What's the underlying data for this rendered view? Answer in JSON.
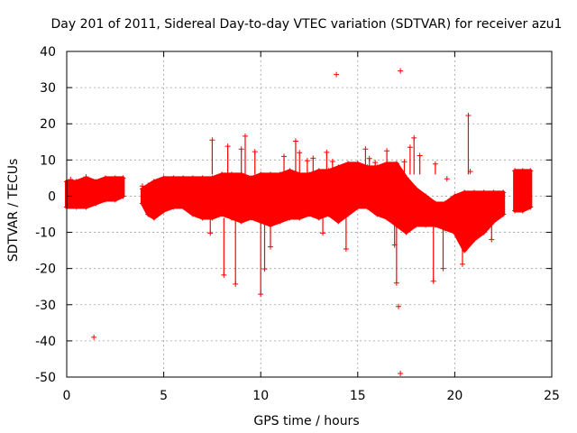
{
  "chart_data": {
    "type": "scatter",
    "title": "Day 201 of 2011, Sidereal Day-to-day VTEC variation (SDTVAR) for receiver azu1",
    "xlabel": "GPS time / hours",
    "ylabel": "SDTVAR / TECUs",
    "xlim": [
      0,
      25
    ],
    "ylim": [
      -50,
      40
    ],
    "xticks": [
      "0",
      "5",
      "10",
      "15",
      "20",
      "25"
    ],
    "yticks": [
      "40",
      "30",
      "20",
      "10",
      "0",
      "-10",
      "-20",
      "-30",
      "-40",
      "-50"
    ],
    "grid": true,
    "marker": "+",
    "color": "#ff0000",
    "series": [
      {
        "name": "SDTVAR",
        "band": [
          [
            0.0,
            -3,
            4
          ],
          [
            0.5,
            -3,
            4
          ],
          [
            1.0,
            -3,
            5
          ],
          [
            1.5,
            -2,
            4
          ],
          [
            2.0,
            -1,
            5
          ],
          [
            2.5,
            -1,
            5
          ],
          [
            2.9,
            0,
            5
          ],
          [
            3.9,
            -2,
            2
          ],
          [
            4.2,
            -5,
            3
          ],
          [
            4.5,
            -6,
            4
          ],
          [
            5.0,
            -4,
            5
          ],
          [
            5.5,
            -3,
            5
          ],
          [
            6.0,
            -3,
            5
          ],
          [
            6.5,
            -5,
            5
          ],
          [
            7.0,
            -6,
            5
          ],
          [
            7.5,
            -6,
            5
          ],
          [
            8.0,
            -5,
            6
          ],
          [
            8.5,
            -6,
            6
          ],
          [
            9.0,
            -7,
            6
          ],
          [
            9.5,
            -6,
            5
          ],
          [
            10.0,
            -7,
            6
          ],
          [
            10.5,
            -8,
            6
          ],
          [
            11.0,
            -7,
            6
          ],
          [
            11.5,
            -6,
            7
          ],
          [
            12.0,
            -6,
            6
          ],
          [
            12.5,
            -5,
            6
          ],
          [
            13.0,
            -6,
            7
          ],
          [
            13.5,
            -5,
            7
          ],
          [
            14.0,
            -7,
            8
          ],
          [
            14.5,
            -5,
            9
          ],
          [
            15.0,
            -3,
            9
          ],
          [
            15.5,
            -3,
            8
          ],
          [
            16.0,
            -5,
            8
          ],
          [
            16.5,
            -6,
            9
          ],
          [
            17.0,
            -8,
            9
          ],
          [
            17.5,
            -10,
            5
          ],
          [
            18.0,
            -8,
            2
          ],
          [
            18.5,
            -8,
            0
          ],
          [
            19.0,
            -8,
            -2
          ],
          [
            19.5,
            -9,
            -2
          ],
          [
            20.0,
            -10,
            0
          ],
          [
            20.5,
            -15,
            1
          ],
          [
            21.0,
            -12,
            1
          ],
          [
            21.5,
            -10,
            1
          ],
          [
            22.0,
            -7,
            1
          ],
          [
            22.5,
            -5,
            1
          ],
          [
            23.1,
            -4,
            7
          ],
          [
            23.5,
            -4,
            7
          ],
          [
            23.9,
            -3,
            7
          ]
        ],
        "points": [
          [
            1.4,
            -39
          ],
          [
            13.9,
            33.6
          ],
          [
            17.2,
            34.6
          ],
          [
            17.2,
            -49
          ],
          [
            17.1,
            -30.5
          ],
          [
            17.0,
            -24
          ],
          [
            16.9,
            -13.5
          ],
          [
            7.5,
            15.5
          ],
          [
            7.4,
            -10.2
          ],
          [
            8.1,
            -21.8
          ],
          [
            8.3,
            13.8
          ],
          [
            8.7,
            -24.3
          ],
          [
            9.0,
            13
          ],
          [
            9.2,
            16.6
          ],
          [
            9.7,
            12.3
          ],
          [
            10.0,
            -27.1
          ],
          [
            10.2,
            -20.1
          ],
          [
            10.5,
            -14
          ],
          [
            11.2,
            11
          ],
          [
            11.8,
            15.2
          ],
          [
            12.0,
            12
          ],
          [
            12.4,
            9.8
          ],
          [
            12.7,
            10.5
          ],
          [
            13.2,
            -10.2
          ],
          [
            13.4,
            12.1
          ],
          [
            13.7,
            9.6
          ],
          [
            14.4,
            -14.6
          ],
          [
            15.4,
            13
          ],
          [
            15.6,
            10.4
          ],
          [
            15.9,
            9.3
          ],
          [
            16.5,
            12.5
          ],
          [
            17.4,
            9.5
          ],
          [
            17.7,
            13.5
          ],
          [
            17.9,
            16.1
          ],
          [
            18.2,
            11.2
          ],
          [
            19.0,
            8.9
          ],
          [
            19.4,
            -20
          ],
          [
            19.6,
            4.8
          ],
          [
            18.9,
            -23.5
          ],
          [
            20.4,
            -18.8
          ],
          [
            20.7,
            22.3
          ],
          [
            20.8,
            6.8
          ],
          [
            1.0,
            5.3
          ],
          [
            0.2,
            4.6
          ],
          [
            3.9,
            2.8
          ],
          [
            21.9,
            -12
          ]
        ]
      }
    ]
  }
}
